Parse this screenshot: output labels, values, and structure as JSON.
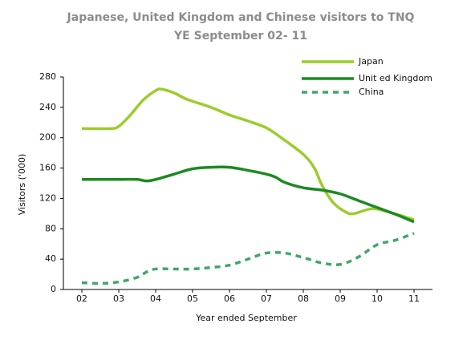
{
  "chart_data": {
    "type": "line",
    "title": "Japanese, United Kingdom and Chinese visitors to TNQ",
    "subtitle": "YE September 02- 11",
    "xlabel": "Year ended September",
    "ylabel": "Visitors ('000)",
    "xlim": [
      1.5,
      11.5
    ],
    "xticks": [
      {
        "value": 2,
        "label": "02"
      },
      {
        "value": 3,
        "label": "03"
      },
      {
        "value": 4,
        "label": "04"
      },
      {
        "value": 5,
        "label": "05"
      },
      {
        "value": 6,
        "label": "06"
      },
      {
        "value": 7,
        "label": "07"
      },
      {
        "value": 8,
        "label": "08"
      },
      {
        "value": 9,
        "label": "09"
      },
      {
        "value": 10,
        "label": "10"
      },
      {
        "value": 11,
        "label": "11"
      }
    ],
    "ylim": [
      0,
      280
    ],
    "yticks": [
      0,
      40,
      80,
      120,
      160,
      200,
      240,
      280
    ],
    "grid": false,
    "legend": "top-right",
    "series": [
      {
        "name": "Japan",
        "color": "#9ccc2e",
        "style": "solid",
        "x": [
          2,
          2.78,
          3,
          3.28,
          3.67,
          4,
          4.15,
          4.5,
          4.83,
          5.5,
          6,
          6.5,
          7,
          7.4,
          8,
          8.3,
          8.5,
          8.8,
          9.15,
          9.37,
          9.8,
          10.1,
          11
        ],
        "values": [
          212,
          212,
          215,
          228,
          250,
          262,
          264,
          259,
          251,
          240,
          230,
          222,
          213,
          200,
          178,
          160,
          138,
          115,
          102,
          100,
          106,
          105,
          92
        ]
      },
      {
        "name": "Unit ed Kingdom",
        "color": "#1c8a22",
        "style": "solid",
        "x": [
          2,
          3,
          3.5,
          3.75,
          4,
          4.5,
          5,
          5.5,
          6,
          6.5,
          7,
          7.25,
          7.5,
          8,
          8.5,
          9,
          9.5,
          10,
          10.5,
          11
        ],
        "values": [
          145,
          145,
          145,
          143,
          145,
          152,
          159,
          161,
          161,
          157,
          152,
          148,
          141,
          134,
          131,
          126,
          117,
          108,
          99,
          89
        ]
      },
      {
        "name": "China",
        "color": "#3fa867",
        "style": "dashed",
        "x": [
          2,
          2.5,
          3,
          3.5,
          3.75,
          4,
          4.5,
          5,
          5.5,
          6,
          6.5,
          7,
          7.5,
          8,
          8.5,
          9,
          9.5,
          10,
          10.5,
          11
        ],
        "values": [
          9,
          8,
          10,
          16,
          23,
          27,
          27,
          27,
          29,
          32,
          40,
          48,
          48,
          42,
          35,
          33,
          43,
          59,
          65,
          74
        ]
      }
    ]
  }
}
